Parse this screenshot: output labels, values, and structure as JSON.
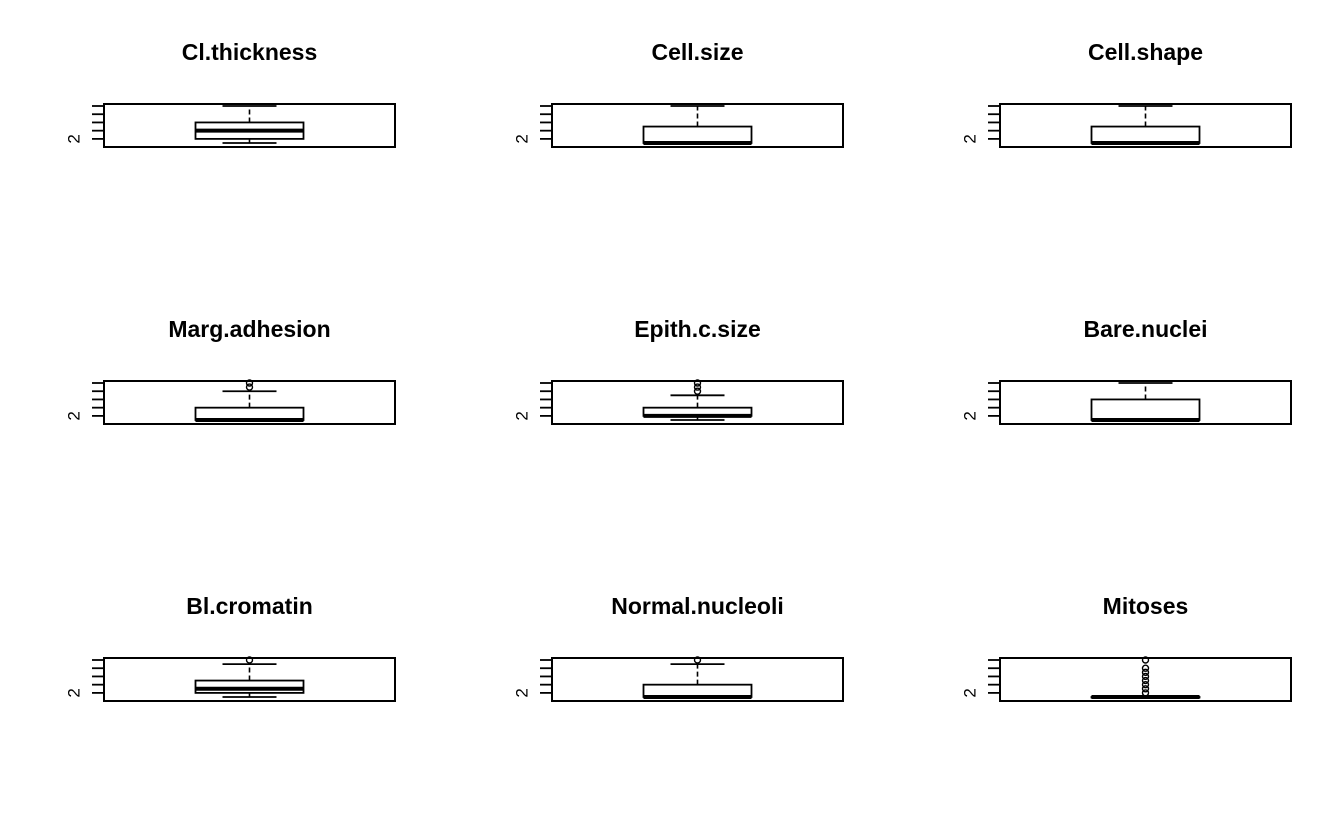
{
  "chart_data": [
    {
      "type": "box",
      "title": "Cl.thickness",
      "ylim": [
        1,
        10
      ],
      "ytick_label": "2",
      "stats": {
        "min": 1,
        "q1": 2,
        "median": 4,
        "q3": 6,
        "max": 10
      },
      "outliers": []
    },
    {
      "type": "box",
      "title": "Cell.size",
      "ylim": [
        1,
        10
      ],
      "ytick_label": "2",
      "stats": {
        "min": 1,
        "q1": 1,
        "median": 1,
        "q3": 5,
        "max": 10
      },
      "outliers": []
    },
    {
      "type": "box",
      "title": "Cell.shape",
      "ylim": [
        1,
        10
      ],
      "ytick_label": "2",
      "stats": {
        "min": 1,
        "q1": 1,
        "median": 1,
        "q3": 5,
        "max": 10
      },
      "outliers": []
    },
    {
      "type": "box",
      "title": "Marg.adhesion",
      "ylim": [
        1,
        10
      ],
      "ytick_label": "2",
      "stats": {
        "min": 1,
        "q1": 1,
        "median": 1,
        "q3": 4,
        "max": 8
      },
      "outliers": [
        9,
        10
      ]
    },
    {
      "type": "box",
      "title": "Epith.c.size",
      "ylim": [
        1,
        10
      ],
      "ytick_label": "2",
      "stats": {
        "min": 1,
        "q1": 2,
        "median": 2,
        "q3": 4,
        "max": 7
      },
      "outliers": [
        8,
        9,
        10
      ]
    },
    {
      "type": "box",
      "title": "Bare.nuclei",
      "ylim": [
        1,
        10
      ],
      "ytick_label": "2",
      "stats": {
        "min": 1,
        "q1": 1,
        "median": 1,
        "q3": 6,
        "max": 10
      },
      "outliers": []
    },
    {
      "type": "box",
      "title": "Bl.cromatin",
      "ylim": [
        1,
        10
      ],
      "ytick_label": "2",
      "stats": {
        "min": 1,
        "q1": 2,
        "median": 3,
        "q3": 5,
        "max": 9
      },
      "outliers": [
        10
      ]
    },
    {
      "type": "box",
      "title": "Normal.nucleoli",
      "ylim": [
        1,
        10
      ],
      "ytick_label": "2",
      "stats": {
        "min": 1,
        "q1": 1,
        "median": 1,
        "q3": 4,
        "max": 9
      },
      "outliers": [
        10
      ]
    },
    {
      "type": "box",
      "title": "Mitoses",
      "ylim": [
        1,
        10
      ],
      "ytick_label": "2",
      "stats": {
        "min": 1,
        "q1": 1,
        "median": 1,
        "q3": 1,
        "max": 1
      },
      "outliers": [
        2,
        3,
        4,
        5,
        6,
        7,
        8,
        10
      ]
    }
  ]
}
